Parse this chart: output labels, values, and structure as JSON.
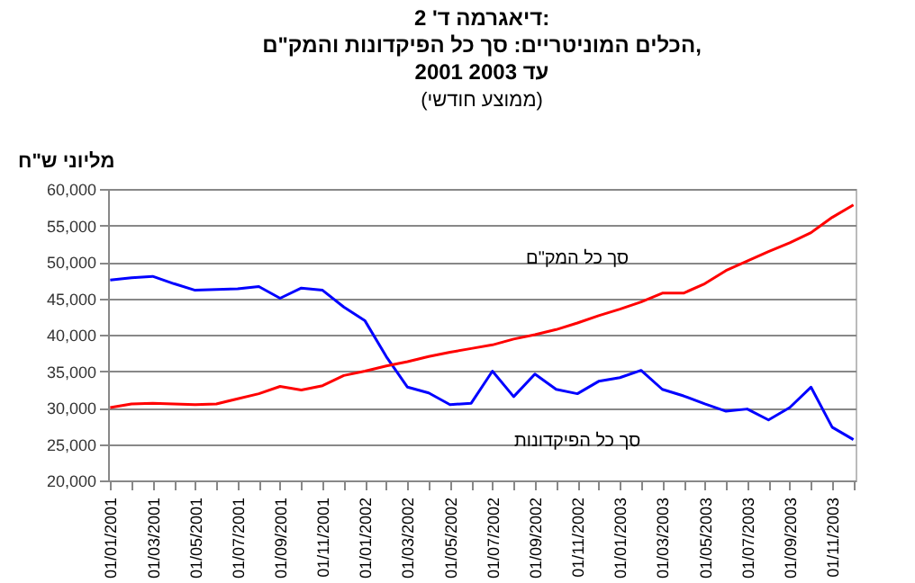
{
  "chart_data": {
    "type": "line",
    "title": "דיאגרמה ד' 2:\nהכלים המוניטריים: סך כל הפיקדונות והמק\"ם,\n2001 עד 2003",
    "subtitle": "(ממוצע חודשי)",
    "ylabel": "מליוני ש\"ח",
    "categories": [
      "01/01/2001",
      null,
      "01/03/2001",
      null,
      "01/05/2001",
      null,
      "01/07/2001",
      null,
      "01/09/2001",
      null,
      "01/11/2001",
      null,
      "01/01/2002",
      null,
      "01/03/2002",
      null,
      "01/05/2002",
      null,
      "01/07/2002",
      null,
      "01/09/2002",
      null,
      "01/11/2002",
      null,
      "01/01/2003",
      null,
      "01/03/2003",
      null,
      "01/05/2003",
      null,
      "01/07/2003",
      null,
      "01/09/2003",
      null,
      "01/11/2003",
      null
    ],
    "series": [
      {
        "name": "סך כל הפיקדונות",
        "color": "#0000ff",
        "values": [
          47500,
          47800,
          48000,
          47000,
          46100,
          46200,
          46300,
          46600,
          45000,
          46400,
          46100,
          43800,
          41900,
          37000,
          32800,
          32000,
          30400,
          30600,
          35000,
          31500,
          34600,
          32500,
          31900,
          33600,
          34100,
          35100,
          32500,
          31600,
          30500,
          29500,
          29800,
          28300,
          30000,
          32800,
          27300,
          25600
        ]
      },
      {
        "name": "סך כל המק\"ם",
        "color": "#ff0000",
        "values": [
          30000,
          30500,
          30600,
          30500,
          30400,
          30500,
          31200,
          31900,
          32900,
          32400,
          33000,
          34400,
          35000,
          35700,
          36300,
          37000,
          37600,
          38100,
          38600,
          39400,
          40000,
          40700,
          41600,
          42600,
          43500,
          44500,
          45700,
          45700,
          47000,
          48800,
          50100,
          51400,
          52600,
          54000,
          56100,
          57800
        ]
      }
    ],
    "ylim": [
      20000,
      60000
    ],
    "yticks": [
      {
        "value": 20000,
        "label": "20,000"
      },
      {
        "value": 25000,
        "label": "25,000"
      },
      {
        "value": 30000,
        "label": "30,000"
      },
      {
        "value": 35000,
        "label": "35,000"
      },
      {
        "value": 40000,
        "label": "40,000"
      },
      {
        "value": 45000,
        "label": "45,000"
      },
      {
        "value": 50000,
        "label": "50,000"
      },
      {
        "value": 55000,
        "label": "55,000"
      },
      {
        "value": 60000,
        "label": "60,000"
      }
    ],
    "grid": "y"
  }
}
